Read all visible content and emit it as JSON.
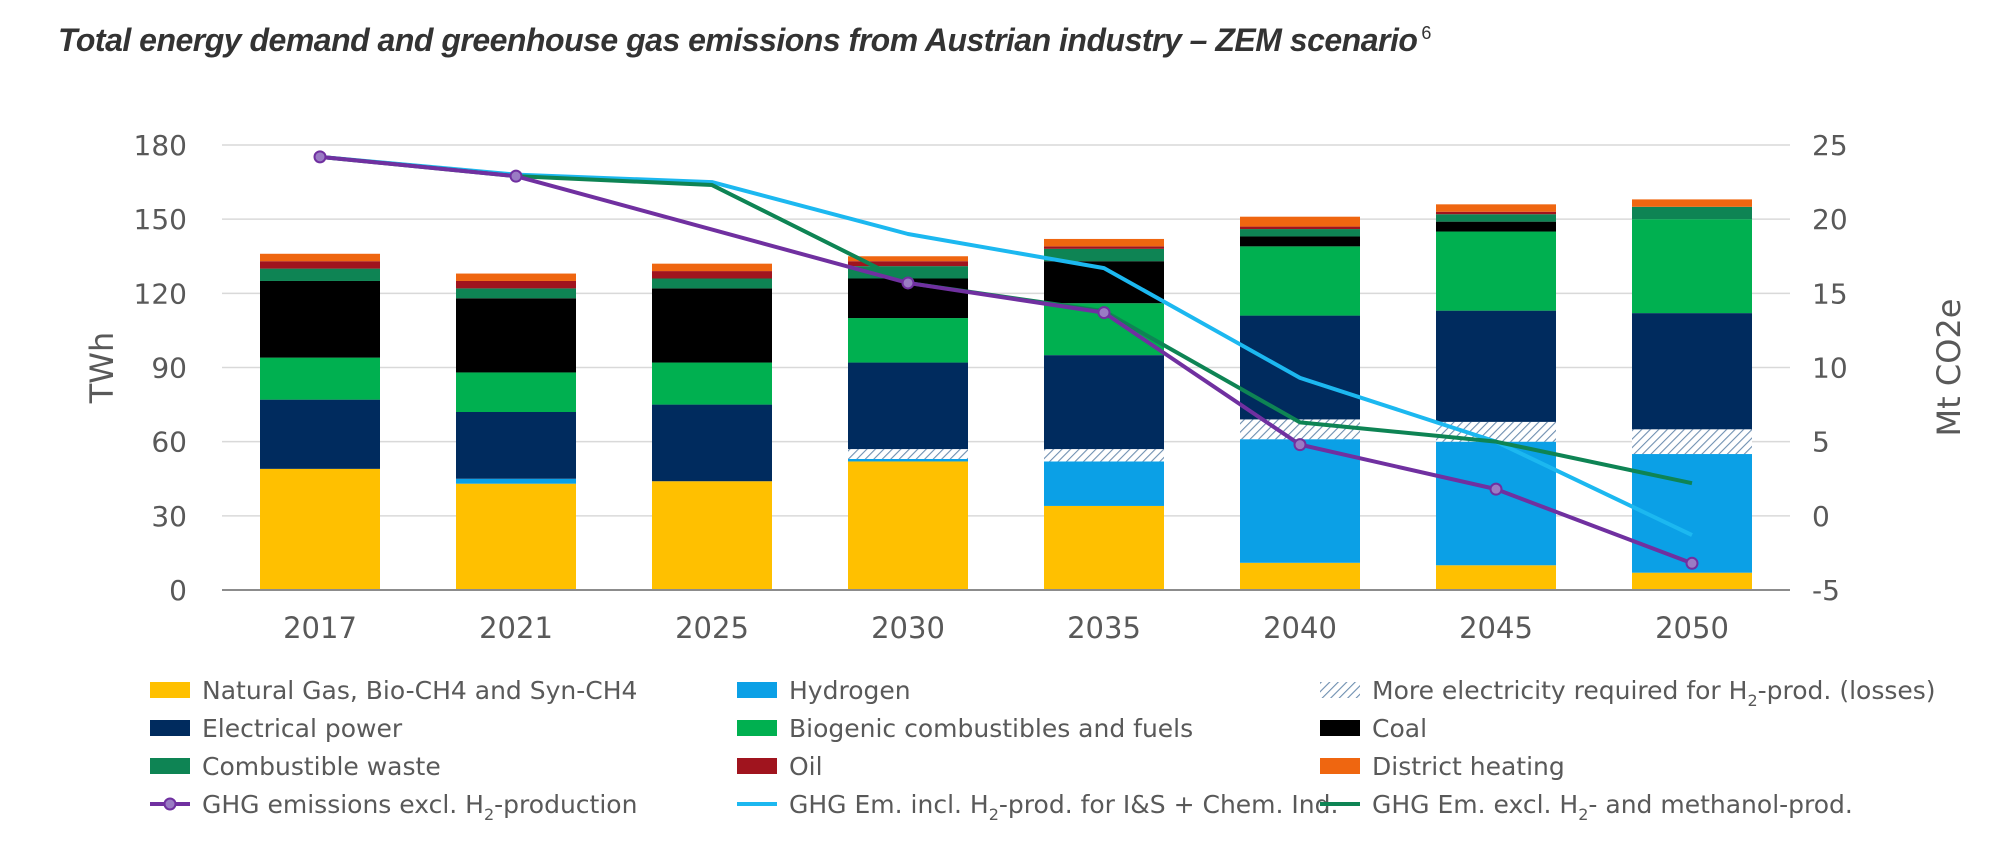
{
  "title": "Total energy demand and greenhouse gas emissions from Austrian industry – ZEM scenario",
  "title_footnote": "6",
  "chart_data": {
    "type": "bar",
    "stacked": true,
    "categories": [
      "2017",
      "2021",
      "2025",
      "2030",
      "2035",
      "2040",
      "2045",
      "2050"
    ],
    "ylabel": "TWh",
    "ylim": [
      0,
      180
    ],
    "yticks": [
      "0",
      "30",
      "60",
      "90",
      "120",
      "150",
      "180"
    ],
    "y2label": "Mt CO2e",
    "y2lim": [
      -5,
      25
    ],
    "y2ticks": [
      "-5",
      "0",
      "5",
      "10",
      "15",
      "20",
      "25"
    ],
    "grid": true,
    "legend_position": "bottom",
    "series": [
      {
        "name": "Natural Gas, Bio-CH4 and Syn-CH4",
        "color": "#FFC000",
        "values": [
          49,
          43,
          44,
          52,
          34,
          11,
          10,
          7
        ]
      },
      {
        "name": "Hydrogen",
        "color": "#0BA0E6",
        "values": [
          0,
          2,
          0,
          1,
          18,
          50,
          50,
          48
        ]
      },
      {
        "name": "More electricity required for H2-prod. (losses)",
        "color": "#B8C7D6",
        "pattern": "hatch",
        "values": [
          0,
          0,
          0,
          4,
          5,
          8,
          8,
          10
        ]
      },
      {
        "name": "Electrical power",
        "color": "#002B5E",
        "values": [
          28,
          27,
          31,
          35,
          38,
          42,
          45,
          47
        ]
      },
      {
        "name": "Biogenic combustibles and fuels",
        "color": "#00B050",
        "values": [
          17,
          16,
          17,
          18,
          21,
          28,
          32,
          38
        ]
      },
      {
        "name": "Coal",
        "color": "#000000",
        "values": [
          31,
          30,
          30,
          16,
          17,
          4,
          4,
          0
        ]
      },
      {
        "name": "Combustible waste",
        "color": "#0E8454",
        "values": [
          5,
          4,
          4,
          5,
          5,
          3,
          3,
          5
        ]
      },
      {
        "name": "Oil",
        "color": "#A0141E",
        "values": [
          3,
          3,
          3,
          2,
          1,
          1,
          1,
          0
        ]
      },
      {
        "name": "District heating",
        "color": "#EF6610",
        "values": [
          3,
          3,
          3,
          2,
          3,
          4,
          3,
          3
        ]
      }
    ],
    "lines": [
      {
        "name": "GHG emissions excl. H2-production",
        "axis": "right",
        "color": "#7030A0",
        "markers": true,
        "x": [
          "2017",
          "2021",
          "2030",
          "2035",
          "2040",
          "2045",
          "2050"
        ],
        "values": [
          24.2,
          22.9,
          15.7,
          13.7,
          4.8,
          1.8,
          -3.2
        ]
      },
      {
        "name": "GHG Em. incl. H2-prod. for I&S + Chem. Ind.",
        "axis": "right",
        "color": "#1CB8F0",
        "markers": false,
        "x": [
          "2017",
          "2021",
          "2025",
          "2030",
          "2035",
          "2040",
          "2045",
          "2050"
        ],
        "values": [
          24.2,
          23.0,
          22.5,
          19.0,
          16.7,
          9.3,
          5.0,
          -1.3
        ]
      },
      {
        "name": "GHG Em. excl. H2- and methanol-prod.",
        "axis": "right",
        "color": "#0E8454",
        "markers": false,
        "x": [
          "2017",
          "2021",
          "2025",
          "2030",
          "2035",
          "2040",
          "2045",
          "2050"
        ],
        "values": [
          24.2,
          22.9,
          22.3,
          15.7,
          13.8,
          6.3,
          5.0,
          2.2
        ]
      }
    ],
    "legend": [
      {
        "label": "Natural Gas, Bio-CH4 and Syn-CH4",
        "kind": "box",
        "color": "#FFC000"
      },
      {
        "label": "Hydrogen",
        "kind": "box",
        "color": "#0BA0E6"
      },
      {
        "label": "More electricity required for H",
        "sub": "2",
        "rest": "-prod. (losses)",
        "kind": "hatch",
        "color": "#B8C7D6"
      },
      {
        "label": "Electrical power",
        "kind": "box",
        "color": "#002B5E"
      },
      {
        "label": "Biogenic combustibles and fuels",
        "kind": "box",
        "color": "#00B050"
      },
      {
        "label": "Coal",
        "kind": "box",
        "color": "#000000"
      },
      {
        "label": "Combustible waste",
        "kind": "box",
        "color": "#0E8454"
      },
      {
        "label": "Oil",
        "kind": "box",
        "color": "#A0141E"
      },
      {
        "label": "District heating",
        "kind": "box",
        "color": "#EF6610"
      },
      {
        "label": "GHG emissions excl. H",
        "sub": "2",
        "rest": "-production",
        "kind": "line-marker",
        "color": "#7030A0"
      },
      {
        "label": "GHG Em. incl. H",
        "sub": "2",
        "rest": "-prod. for I&S + Chem. Ind.",
        "kind": "line",
        "color": "#1CB8F0"
      },
      {
        "label": "GHG Em. excl. H",
        "sub": "2",
        "rest": "- and methanol-prod.",
        "kind": "line",
        "color": "#0E8454"
      }
    ]
  }
}
